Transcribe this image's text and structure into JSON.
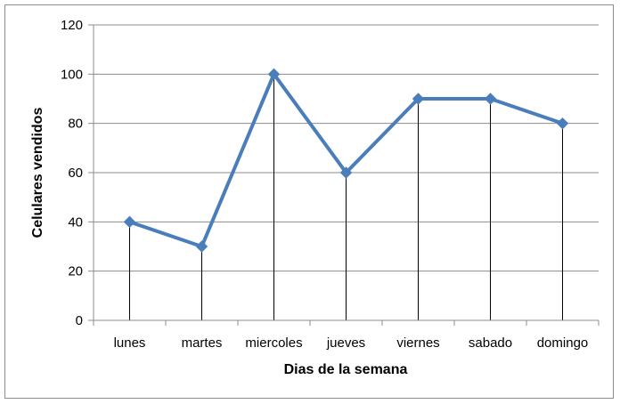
{
  "chart_data": {
    "type": "line",
    "categories": [
      "lunes",
      "martes",
      "miercoles",
      "jueves",
      "viernes",
      "sabado",
      "domingo"
    ],
    "series": [
      {
        "values": [
          40,
          30,
          100,
          60,
          90,
          90,
          80
        ],
        "color": "#4a7ebb"
      }
    ],
    "xlabel": "Dias de la semana",
    "ylabel": "Celulares vendidos",
    "ylim": [
      0,
      120
    ],
    "yticks": [
      "0",
      "20",
      "40",
      "60",
      "80",
      "100",
      "120"
    ],
    "grid": "horizontal",
    "drop_lines": true,
    "marker": "diamond"
  }
}
